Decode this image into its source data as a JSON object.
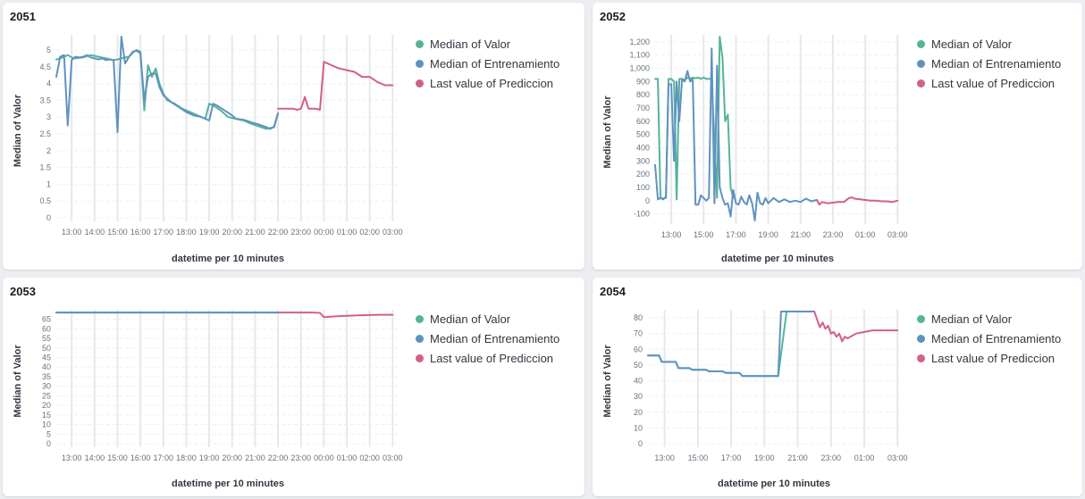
{
  "palette": {
    "valor": "#54b399",
    "entrenamiento": "#6092c0",
    "prediccion": "#d36086",
    "grid": "#eef0f3",
    "vgrid": "#e6e8ec",
    "tick": "#69707d",
    "axis_title": "#343741"
  },
  "chart_data": [
    {
      "id": "2051",
      "type": "line",
      "title": "2051",
      "xlabel": "datetime per 10 minutes",
      "ylabel": "Median of Valor",
      "ylim": [
        0,
        5.4
      ],
      "yticks": [
        0,
        0.5,
        1,
        1.5,
        2,
        2.5,
        3,
        3.5,
        4,
        4.5,
        5
      ],
      "ytick_labels": [
        "0",
        "0.5",
        "1",
        "1.5",
        "2",
        "2.5",
        "3",
        "3.5",
        "4",
        "4.5",
        "5"
      ],
      "xlim": [
        12.33,
        27.3
      ],
      "xticks": [
        13,
        14,
        15,
        16,
        17,
        18,
        19,
        20,
        21,
        22,
        23,
        24,
        25,
        26,
        27
      ],
      "xtick_labels": [
        "13:00",
        "14:00",
        "15:00",
        "16:00",
        "17:00",
        "18:00",
        "19:00",
        "20:00",
        "21:00",
        "22:00",
        "23:00",
        "00:00",
        "01:00",
        "02:00",
        "03:00"
      ],
      "grid": true,
      "legend_position": "right",
      "series": [
        {
          "name": "Median of Valor",
          "color_key": "valor",
          "x": [
            12.33,
            12.5,
            12.67,
            12.83,
            13.0,
            13.17,
            13.5,
            13.83,
            14.17,
            14.5,
            14.83,
            15.0,
            15.17,
            15.33,
            15.5,
            15.67,
            15.83,
            16.0,
            16.17,
            16.33,
            16.5,
            16.67,
            16.83,
            17.0,
            17.17,
            17.5,
            17.83,
            18.17,
            18.5,
            18.83,
            19.0,
            19.17,
            19.5,
            19.83,
            20.17,
            20.5,
            20.83,
            21.17,
            21.5,
            21.83,
            22.0
          ],
          "y": [
            4.72,
            4.75,
            4.8,
            4.85,
            4.78,
            4.75,
            4.78,
            4.85,
            4.8,
            4.75,
            4.7,
            4.72,
            4.75,
            4.78,
            4.8,
            4.92,
            5.0,
            4.95,
            3.2,
            4.55,
            4.2,
            4.45,
            4.0,
            3.7,
            3.5,
            3.4,
            3.25,
            3.15,
            3.05,
            2.95,
            3.4,
            3.35,
            3.2,
            3.0,
            2.95,
            2.9,
            2.8,
            2.72,
            2.65,
            2.7,
            3.1
          ]
        },
        {
          "name": "Median of Entrenamiento",
          "color_key": "entrenamiento",
          "x": [
            12.33,
            12.5,
            12.67,
            12.83,
            13.0,
            13.17,
            13.33,
            13.5,
            13.67,
            13.83,
            14.0,
            14.17,
            14.33,
            14.5,
            14.67,
            14.83,
            15.0,
            15.17,
            15.33,
            15.5,
            15.67,
            15.83,
            16.0,
            16.17,
            16.33,
            16.5,
            16.67,
            16.83,
            17.0,
            17.17,
            17.33,
            17.67,
            18.0,
            18.33,
            18.67,
            19.0,
            19.17,
            19.33,
            19.67,
            20.0,
            20.17,
            20.5,
            20.83,
            21.17,
            21.5,
            21.67,
            21.83,
            22.0
          ],
          "y": [
            4.2,
            4.8,
            4.85,
            2.75,
            4.7,
            4.8,
            4.78,
            4.8,
            4.85,
            4.78,
            4.75,
            4.72,
            4.75,
            4.7,
            4.72,
            4.7,
            2.55,
            5.4,
            4.6,
            4.8,
            4.95,
            4.98,
            4.9,
            3.5,
            4.2,
            4.3,
            4.3,
            3.9,
            3.65,
            3.55,
            3.45,
            3.3,
            3.15,
            3.05,
            3.0,
            2.9,
            3.4,
            3.35,
            3.2,
            3.05,
            2.95,
            2.92,
            2.85,
            2.78,
            2.7,
            2.65,
            2.72,
            3.12
          ]
        },
        {
          "name": "Last value of Prediccion",
          "color_key": "prediccion",
          "x": [
            22.0,
            22.33,
            22.67,
            22.83,
            23.0,
            23.17,
            23.33,
            23.67,
            23.83,
            24.0,
            24.33,
            24.67,
            25.0,
            25.33,
            25.67,
            26.0,
            26.33,
            26.67,
            27.0
          ],
          "y": [
            3.25,
            3.25,
            3.25,
            3.22,
            3.25,
            3.6,
            3.25,
            3.25,
            3.22,
            4.65,
            4.55,
            4.45,
            4.4,
            4.35,
            4.2,
            4.2,
            4.05,
            3.95,
            3.95
          ]
        }
      ]
    },
    {
      "id": "2052",
      "type": "line",
      "title": "2052",
      "xlabel": "datetime per 10 minutes",
      "ylabel": "Median of Valor",
      "ylim": [
        -150,
        1240
      ],
      "yticks": [
        -100,
        0,
        100,
        200,
        300,
        400,
        500,
        600,
        700,
        800,
        900,
        1000,
        1100,
        1200
      ],
      "ytick_labels": [
        "-100",
        "0",
        "100",
        "200",
        "300",
        "400",
        "500",
        "600",
        "700",
        "800",
        "900",
        "1,000",
        "1,100",
        "1,200"
      ],
      "xlim": [
        12.0,
        27.15
      ],
      "xticks": [
        13,
        15,
        17,
        19,
        21,
        23,
        25,
        27
      ],
      "xtick_labels": [
        "13:00",
        "15:00",
        "17:00",
        "19:00",
        "21:00",
        "23:00",
        "01:00",
        "03:00"
      ],
      "grid": true,
      "legend_position": "right",
      "series": [
        {
          "name": "Median of Valor",
          "color_key": "valor",
          "x": [
            12.0,
            12.17,
            12.33,
            12.5,
            12.67,
            12.83,
            13.0,
            13.17,
            13.33,
            13.5,
            13.67,
            13.83,
            14.0,
            14.17,
            14.33,
            14.5,
            14.67,
            14.83,
            15.0,
            15.17,
            15.5,
            15.83,
            16.0,
            16.17,
            16.33,
            16.5,
            16.67,
            16.83
          ],
          "y": [
            920,
            920,
            20,
            15,
            20,
            920,
            920,
            900,
            10,
            920,
            920,
            910,
            930,
            920,
            930,
            925,
            930,
            920,
            930,
            920,
            920,
            20,
            1240,
            1080,
            600,
            650,
            100,
            20
          ]
        },
        {
          "name": "Median of Entrenamiento",
          "color_key": "entrenamiento",
          "x": [
            12.0,
            12.17,
            12.33,
            12.5,
            12.67,
            12.83,
            13.0,
            13.17,
            13.33,
            13.5,
            13.67,
            13.83,
            14.0,
            14.17,
            14.33,
            14.5,
            14.67,
            14.83,
            15.0,
            15.17,
            15.33,
            15.5,
            15.67,
            15.83,
            16.0,
            16.17,
            16.33,
            16.5,
            16.67,
            16.83,
            17.0,
            17.17,
            17.33,
            17.5,
            17.67,
            17.83,
            18.0,
            18.17,
            18.33,
            18.5,
            18.67,
            18.83,
            19.0,
            19.33,
            19.67,
            20.0,
            20.33,
            20.67,
            21.0,
            21.33,
            21.67,
            22.0
          ],
          "y": [
            270,
            10,
            20,
            10,
            30,
            880,
            880,
            300,
            900,
            600,
            920,
            900,
            980,
            900,
            920,
            -30,
            -30,
            40,
            20,
            0,
            20,
            1150,
            -20,
            1020,
            100,
            20,
            -30,
            -20,
            -120,
            80,
            -20,
            -30,
            30,
            -10,
            -30,
            40,
            -20,
            -150,
            60,
            -20,
            -30,
            20,
            -20,
            20,
            -10,
            10,
            -10,
            0,
            -10,
            15,
            -5,
            5
          ]
        },
        {
          "name": "Last value of Prediccion",
          "color_key": "prediccion",
          "x": [
            22.0,
            22.17,
            22.33,
            22.67,
            23.0,
            23.33,
            23.67,
            24.0,
            24.17,
            24.33,
            24.67,
            25.0,
            25.33,
            25.67,
            26.0,
            26.33,
            26.67,
            27.0
          ],
          "y": [
            5,
            -30,
            -10,
            -20,
            -15,
            -10,
            -10,
            20,
            25,
            15,
            10,
            5,
            0,
            0,
            -5,
            -5,
            -10,
            0
          ]
        }
      ]
    },
    {
      "id": "2053",
      "type": "line",
      "title": "2053",
      "xlabel": "datetime per 10 minutes",
      "ylabel": "Median of Valor",
      "ylim": [
        0,
        69
      ],
      "yticks": [
        0,
        5,
        10,
        15,
        20,
        25,
        30,
        35,
        40,
        45,
        50,
        55,
        60,
        65
      ],
      "ytick_labels": [
        "0",
        "5",
        "10",
        "15",
        "20",
        "25",
        "30",
        "35",
        "40",
        "45",
        "50",
        "55",
        "60",
        "65"
      ],
      "xlim": [
        12.33,
        27.3
      ],
      "xticks": [
        13,
        14,
        15,
        16,
        17,
        18,
        19,
        20,
        21,
        22,
        23,
        24,
        25,
        26,
        27
      ],
      "xtick_labels": [
        "13:00",
        "14:00",
        "15:00",
        "16:00",
        "17:00",
        "18:00",
        "19:00",
        "20:00",
        "21:00",
        "22:00",
        "23:00",
        "00:00",
        "01:00",
        "02:00",
        "03:00"
      ],
      "grid": true,
      "legend_position": "right",
      "series": [
        {
          "name": "Median of Valor",
          "color_key": "valor",
          "x": [
            12.33,
            22.0
          ],
          "y": [
            68.5,
            68.5
          ]
        },
        {
          "name": "Median of Entrenamiento",
          "color_key": "entrenamiento",
          "x": [
            12.33,
            22.0
          ],
          "y": [
            68.5,
            68.5
          ]
        },
        {
          "name": "Last value of Prediccion",
          "color_key": "prediccion",
          "x": [
            22.0,
            23.5,
            23.83,
            24.0,
            24.5,
            25.0,
            25.5,
            26.0,
            26.5,
            27.0
          ],
          "y": [
            68.5,
            68.5,
            68.3,
            66.0,
            66.5,
            66.8,
            67.0,
            67.2,
            67.3,
            67.3
          ]
        }
      ]
    },
    {
      "id": "2054",
      "type": "line",
      "title": "2054",
      "xlabel": "datetime per 10 minutes",
      "ylabel": "Median of Valor",
      "ylim": [
        0,
        84
      ],
      "yticks": [
        0,
        10,
        20,
        30,
        40,
        50,
        60,
        70,
        80
      ],
      "ytick_labels": [
        "0",
        "10",
        "20",
        "30",
        "40",
        "50",
        "60",
        "70",
        "80"
      ],
      "xlim": [
        12.0,
        27.15
      ],
      "xticks": [
        13,
        15,
        17,
        19,
        21,
        23,
        25,
        27
      ],
      "xtick_labels": [
        "13:00",
        "15:00",
        "17:00",
        "19:00",
        "21:00",
        "23:00",
        "01:00",
        "03:00"
      ],
      "grid": true,
      "legend_position": "right",
      "series": [
        {
          "name": "Median of Valor",
          "color_key": "valor",
          "x": [
            12.0,
            12.67,
            12.83,
            13.67,
            13.83,
            14.5,
            14.67,
            15.5,
            15.67,
            16.5,
            16.67,
            17.5,
            17.67,
            19.83,
            20.33,
            20.5,
            21.0,
            21.33,
            22.0
          ],
          "y": [
            56,
            56,
            52,
            52,
            48,
            48,
            47,
            47,
            46,
            46,
            45,
            45,
            43,
            43,
            84,
            84,
            84,
            84,
            84
          ]
        },
        {
          "name": "Median of Entrenamiento",
          "color_key": "entrenamiento",
          "x": [
            12.0,
            12.67,
            12.83,
            13.67,
            13.83,
            14.5,
            14.67,
            15.5,
            15.67,
            16.5,
            16.67,
            17.5,
            17.67,
            19.83,
            20.0,
            21.0,
            21.33,
            22.0
          ],
          "y": [
            56,
            56,
            52,
            52,
            48,
            48,
            47,
            47,
            46,
            46,
            45,
            45,
            43,
            43,
            84,
            84,
            84,
            84
          ]
        },
        {
          "name": "Last value of Prediccion",
          "color_key": "prediccion",
          "x": [
            22.0,
            22.33,
            22.5,
            22.67,
            22.83,
            23.0,
            23.17,
            23.33,
            23.5,
            23.67,
            23.83,
            24.0,
            24.17,
            24.5,
            25.0,
            25.5,
            26.0,
            26.5,
            27.0
          ],
          "y": [
            84,
            74,
            77,
            73,
            75,
            70,
            71,
            68,
            70,
            65,
            68,
            67,
            68,
            70,
            71,
            72,
            72,
            72,
            72
          ]
        }
      ]
    }
  ]
}
